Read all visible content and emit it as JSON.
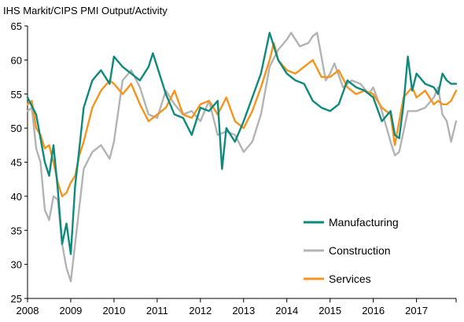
{
  "chart_data": {
    "type": "line",
    "title": "IHS Markit/CIPS PMI Output/Activity",
    "xlabel": "",
    "ylabel": "",
    "ylim": [
      25,
      65
    ],
    "yticks": [
      25,
      30,
      35,
      40,
      45,
      50,
      55,
      60,
      65
    ],
    "xlim": [
      2008.0,
      2017.917
    ],
    "xticks": [
      "2008",
      "2009",
      "2010",
      "2011",
      "2012",
      "2013",
      "2014",
      "2015",
      "2016",
      "2017"
    ],
    "grid": false,
    "legend": "bottom-right",
    "series": [
      {
        "name": "Manufacturing",
        "color": "#0e8a7c",
        "x": [
          2008.0,
          2008.2,
          2008.4,
          2008.5,
          2008.6,
          2008.7,
          2008.8,
          2008.9,
          2009.0,
          2009.1,
          2009.2,
          2009.3,
          2009.5,
          2009.7,
          2009.9,
          2010.0,
          2010.2,
          2010.4,
          2010.6,
          2010.8,
          2010.9,
          2011.1,
          2011.2,
          2011.4,
          2011.6,
          2011.8,
          2012.0,
          2012.2,
          2012.4,
          2012.5,
          2012.6,
          2012.8,
          2013.0,
          2013.2,
          2013.4,
          2013.6,
          2013.8,
          2014.0,
          2014.2,
          2014.4,
          2014.6,
          2014.8,
          2015.0,
          2015.2,
          2015.4,
          2015.6,
          2015.8,
          2016.0,
          2016.2,
          2016.4,
          2016.5,
          2016.6,
          2016.7,
          2016.8,
          2016.9,
          2017.0,
          2017.2,
          2017.4,
          2017.5,
          2017.6,
          2017.7,
          2017.8,
          2017.917
        ],
        "values": [
          54.5,
          52.0,
          45.0,
          43.0,
          47.5,
          41.0,
          33.0,
          36.0,
          31.5,
          41.5,
          47.0,
          53.0,
          57.0,
          58.5,
          56.5,
          60.5,
          59.0,
          58.0,
          57.0,
          59.0,
          61.0,
          57.0,
          55.0,
          52.0,
          51.5,
          49.0,
          53.0,
          52.5,
          54.0,
          44.0,
          50.0,
          48.0,
          51.0,
          54.5,
          58.0,
          64.0,
          60.0,
          58.0,
          57.0,
          56.5,
          54.0,
          53.0,
          52.5,
          53.5,
          57.0,
          56.0,
          55.5,
          54.5,
          51.0,
          52.5,
          49.0,
          48.5,
          53.5,
          60.5,
          55.5,
          58.0,
          56.5,
          56.0,
          55.0,
          58.0,
          57.0,
          56.5,
          56.5
        ]
      },
      {
        "name": "Construction",
        "color": "#b3b3b3",
        "x": [
          2008.0,
          2008.1,
          2008.2,
          2008.3,
          2008.4,
          2008.5,
          2008.6,
          2008.7,
          2008.8,
          2008.9,
          2009.0,
          2009.1,
          2009.3,
          2009.5,
          2009.7,
          2009.9,
          2010.0,
          2010.2,
          2010.4,
          2010.6,
          2010.8,
          2011.0,
          2011.2,
          2011.4,
          2011.6,
          2011.8,
          2012.0,
          2012.2,
          2012.4,
          2012.6,
          2012.8,
          2013.0,
          2013.2,
          2013.4,
          2013.6,
          2013.8,
          2014.0,
          2014.1,
          2014.3,
          2014.5,
          2014.6,
          2014.7,
          2014.9,
          2015.0,
          2015.1,
          2015.3,
          2015.5,
          2015.7,
          2015.9,
          2016.0,
          2016.2,
          2016.4,
          2016.5,
          2016.6,
          2016.8,
          2017.0,
          2017.2,
          2017.4,
          2017.5,
          2017.6,
          2017.7,
          2017.8,
          2017.917
        ],
        "values": [
          52.5,
          53.0,
          47.0,
          45.0,
          38.0,
          36.5,
          40.0,
          39.5,
          33.0,
          29.5,
          27.5,
          33.0,
          44.0,
          46.5,
          47.5,
          45.5,
          48.0,
          57.0,
          58.5,
          56.0,
          52.0,
          51.5,
          55.5,
          53.5,
          52.0,
          52.5,
          51.0,
          54.0,
          49.0,
          49.5,
          49.0,
          46.5,
          48.0,
          52.0,
          59.0,
          61.5,
          63.0,
          64.0,
          62.0,
          62.5,
          63.5,
          64.0,
          57.0,
          58.0,
          59.5,
          56.0,
          57.0,
          56.5,
          55.0,
          56.0,
          52.5,
          48.0,
          46.0,
          46.5,
          52.5,
          52.5,
          53.0,
          54.5,
          56.0,
          52.0,
          51.0,
          48.0,
          51.0
        ]
      },
      {
        "name": "Services",
        "color": "#f7941d",
        "x": [
          2008.0,
          2008.1,
          2008.2,
          2008.3,
          2008.4,
          2008.5,
          2008.6,
          2008.7,
          2008.8,
          2008.9,
          2009.0,
          2009.1,
          2009.2,
          2009.3,
          2009.5,
          2009.7,
          2009.9,
          2010.0,
          2010.2,
          2010.4,
          2010.6,
          2010.8,
          2011.0,
          2011.2,
          2011.4,
          2011.6,
          2011.8,
          2012.0,
          2012.2,
          2012.4,
          2012.6,
          2012.8,
          2013.0,
          2013.2,
          2013.4,
          2013.6,
          2013.7,
          2013.8,
          2014.0,
          2014.2,
          2014.4,
          2014.6,
          2014.8,
          2015.0,
          2015.2,
          2015.4,
          2015.6,
          2015.8,
          2016.0,
          2016.2,
          2016.4,
          2016.5,
          2016.6,
          2016.7,
          2016.9,
          2017.0,
          2017.2,
          2017.4,
          2017.5,
          2017.6,
          2017.7,
          2017.8,
          2017.917
        ],
        "values": [
          53.5,
          54.0,
          50.0,
          49.0,
          47.0,
          47.5,
          45.0,
          42.0,
          40.0,
          40.5,
          42.0,
          43.0,
          46.0,
          48.0,
          53.0,
          55.5,
          57.0,
          56.5,
          55.0,
          56.5,
          53.5,
          51.0,
          52.0,
          53.0,
          55.5,
          52.0,
          51.5,
          53.5,
          54.0,
          52.0,
          54.5,
          51.0,
          50.0,
          52.5,
          56.0,
          60.0,
          62.5,
          60.0,
          58.5,
          58.0,
          59.0,
          60.0,
          57.5,
          57.5,
          58.5,
          56.0,
          55.0,
          55.5,
          55.0,
          53.0,
          52.0,
          47.5,
          51.0,
          54.5,
          56.0,
          54.5,
          55.5,
          53.5,
          54.0,
          53.5,
          53.5,
          54.0,
          55.5
        ]
      }
    ]
  }
}
